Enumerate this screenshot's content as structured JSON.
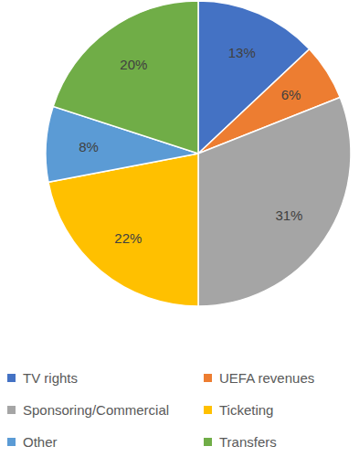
{
  "chart_data": {
    "type": "pie",
    "categories": [
      "TV rights",
      "UEFA revenues",
      "Sponsoring/Commercial",
      "Ticketing",
      "Other",
      "Transfers"
    ],
    "values": [
      13,
      6,
      31,
      22,
      8,
      20
    ],
    "value_labels": [
      "13%",
      "6%",
      "31%",
      "22%",
      "8%",
      "20%"
    ],
    "colors": [
      "#4472c4",
      "#ed7d31",
      "#a5a5a5",
      "#ffc000",
      "#5b9bd5",
      "#70ad47"
    ],
    "data_labels": true,
    "legend": "bottom"
  }
}
